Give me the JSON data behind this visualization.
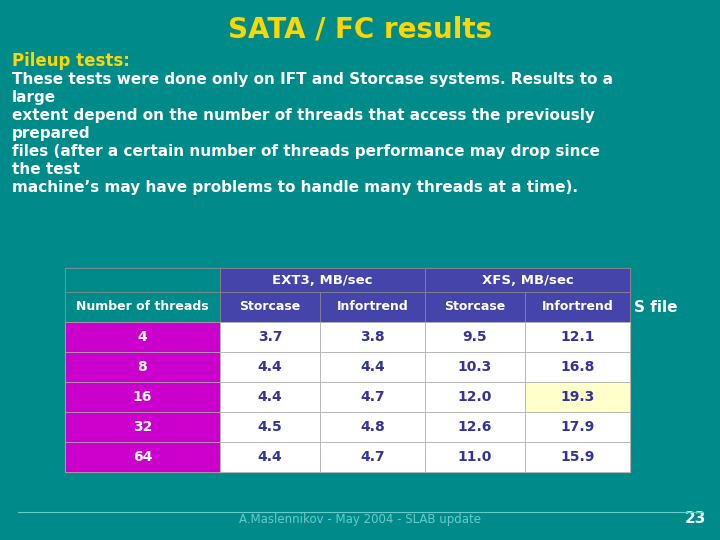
{
  "title": "SATA / FC results",
  "title_color": "#FFD700",
  "background_color": "#008B8B",
  "text_color": "#FFFFFF",
  "bold_label": "Pileup tests:",
  "bold_label_color": "#FFD700",
  "body_lines": [
    "These tests were done only on IFT and Storcase systems. Results to a large",
    "extent depend on the number of threads that access the previously prepared",
    "files (after a certain number of threads performance may drop since the test",
    "machine’s may have problems to handle many threads at a time)."
  ],
  "table": {
    "header1_labels": [
      "EXT3, MB/sec",
      "XFS, MB/sec"
    ],
    "header2": [
      "Number of threads",
      "Storcase",
      "Infortrend",
      "Storcase",
      "Infortrend"
    ],
    "header_bg": "#4444AA",
    "rows": [
      [
        "4",
        "3.7",
        "3.8",
        "9.5",
        "12.1"
      ],
      [
        "8",
        "4.4",
        "4.4",
        "10.3",
        "16.8"
      ],
      [
        "16",
        "4.4",
        "4.7",
        "12.0",
        "19.3"
      ],
      [
        "32",
        "4.5",
        "4.8",
        "12.6",
        "17.9"
      ],
      [
        "64",
        "4.4",
        "4.7",
        "11.0",
        "15.9"
      ]
    ],
    "row_bg": "#CC00CC",
    "highlight_cell": [
      2,
      4
    ],
    "highlight_color": "#FFFFCC",
    "table_bg": "#FFFFFF",
    "text_color_header": "#FFFFFF",
    "text_color_data": "#333399"
  },
  "suffix_text": "S file",
  "footer": "A.Maslennikov - May 2004 - SLAB update",
  "footer_color": "#66CCCC",
  "page_number": "23",
  "page_number_color": "#FFFFFF"
}
